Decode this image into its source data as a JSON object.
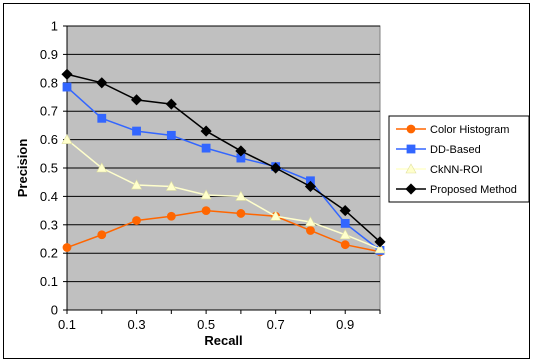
{
  "chart_data": {
    "type": "line",
    "title": "",
    "xlabel": "Recall",
    "ylabel": "Precision",
    "x": [
      0.1,
      0.2,
      0.3,
      0.4,
      0.5,
      0.6,
      0.7,
      0.8,
      0.9,
      1.0
    ],
    "x_tick_labels": [
      "0.1",
      "",
      "0.3",
      "",
      "0.5",
      "",
      "0.7",
      "",
      "0.9",
      ""
    ],
    "y_ticks": [
      0,
      0.1,
      0.2,
      0.3,
      0.4,
      0.5,
      0.6,
      0.7,
      0.8,
      0.9,
      1
    ],
    "y_tick_labels": [
      "0",
      "0.1",
      "0.2",
      "0.3",
      "0.4",
      "0.5",
      "0.6",
      "0.7",
      "0.8",
      "0.9",
      "1"
    ],
    "ylim": [
      0,
      1
    ],
    "grid": true,
    "plot_background": "#c0c0c0",
    "legend_position": "right",
    "series": [
      {
        "name": "Color Histogram",
        "color": "#ff6600",
        "marker": "circle",
        "values": [
          0.22,
          0.265,
          0.315,
          0.33,
          0.35,
          0.34,
          0.33,
          0.28,
          0.23,
          0.205
        ]
      },
      {
        "name": "DD-Based",
        "color": "#3366ff",
        "marker": "square",
        "values": [
          0.785,
          0.675,
          0.63,
          0.615,
          0.57,
          0.535,
          0.505,
          0.455,
          0.305,
          0.21
        ]
      },
      {
        "name": "CkNN-ROI",
        "color": "#ffffcc",
        "marker": "triangle",
        "values": [
          0.6,
          0.5,
          0.44,
          0.435,
          0.405,
          0.4,
          0.33,
          0.31,
          0.265,
          0.215
        ]
      },
      {
        "name": "Proposed Method",
        "color": "#000000",
        "marker": "diamond",
        "values": [
          0.83,
          0.8,
          0.74,
          0.725,
          0.63,
          0.56,
          0.5,
          0.435,
          0.35,
          0.24
        ]
      }
    ]
  }
}
